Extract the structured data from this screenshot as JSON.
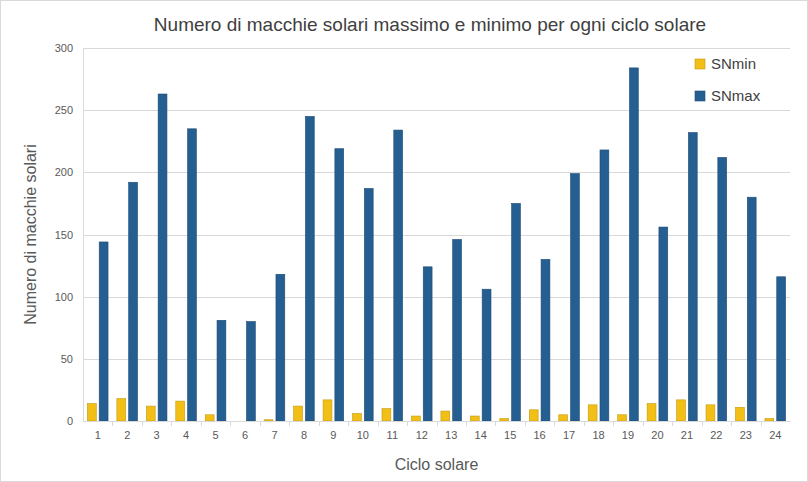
{
  "chart_data": {
    "type": "bar",
    "title": "Numero di macchie solari massimo e minimo per ogni ciclo solare",
    "x_label": "Ciclo solare",
    "y_label": "Numero di macchie solari",
    "categories": [
      "1",
      "2",
      "3",
      "4",
      "5",
      "6",
      "7",
      "8",
      "9",
      "10",
      "11",
      "12",
      "13",
      "14",
      "15",
      "16",
      "17",
      "18",
      "19",
      "20",
      "21",
      "22",
      "23",
      "24"
    ],
    "series": [
      {
        "name": "SNmin",
        "color": "#f2bf17",
        "values": [
          14,
          18,
          12,
          16,
          5,
          0,
          1,
          12,
          17,
          6,
          10,
          4,
          8,
          4,
          2,
          9,
          5,
          13,
          5,
          14,
          17,
          13,
          11,
          2
        ]
      },
      {
        "name": "SNmax",
        "color": "#255e91",
        "values": [
          144,
          192,
          263,
          235,
          81,
          80,
          118,
          245,
          219,
          187,
          234,
          124,
          146,
          106,
          175,
          130,
          199,
          218,
          284,
          156,
          232,
          212,
          180,
          116
        ]
      }
    ],
    "ylim": [
      0,
      300
    ],
    "yticks": [
      0,
      50,
      100,
      150,
      200,
      250,
      300
    ],
    "grid": true,
    "legend": "top-right"
  }
}
